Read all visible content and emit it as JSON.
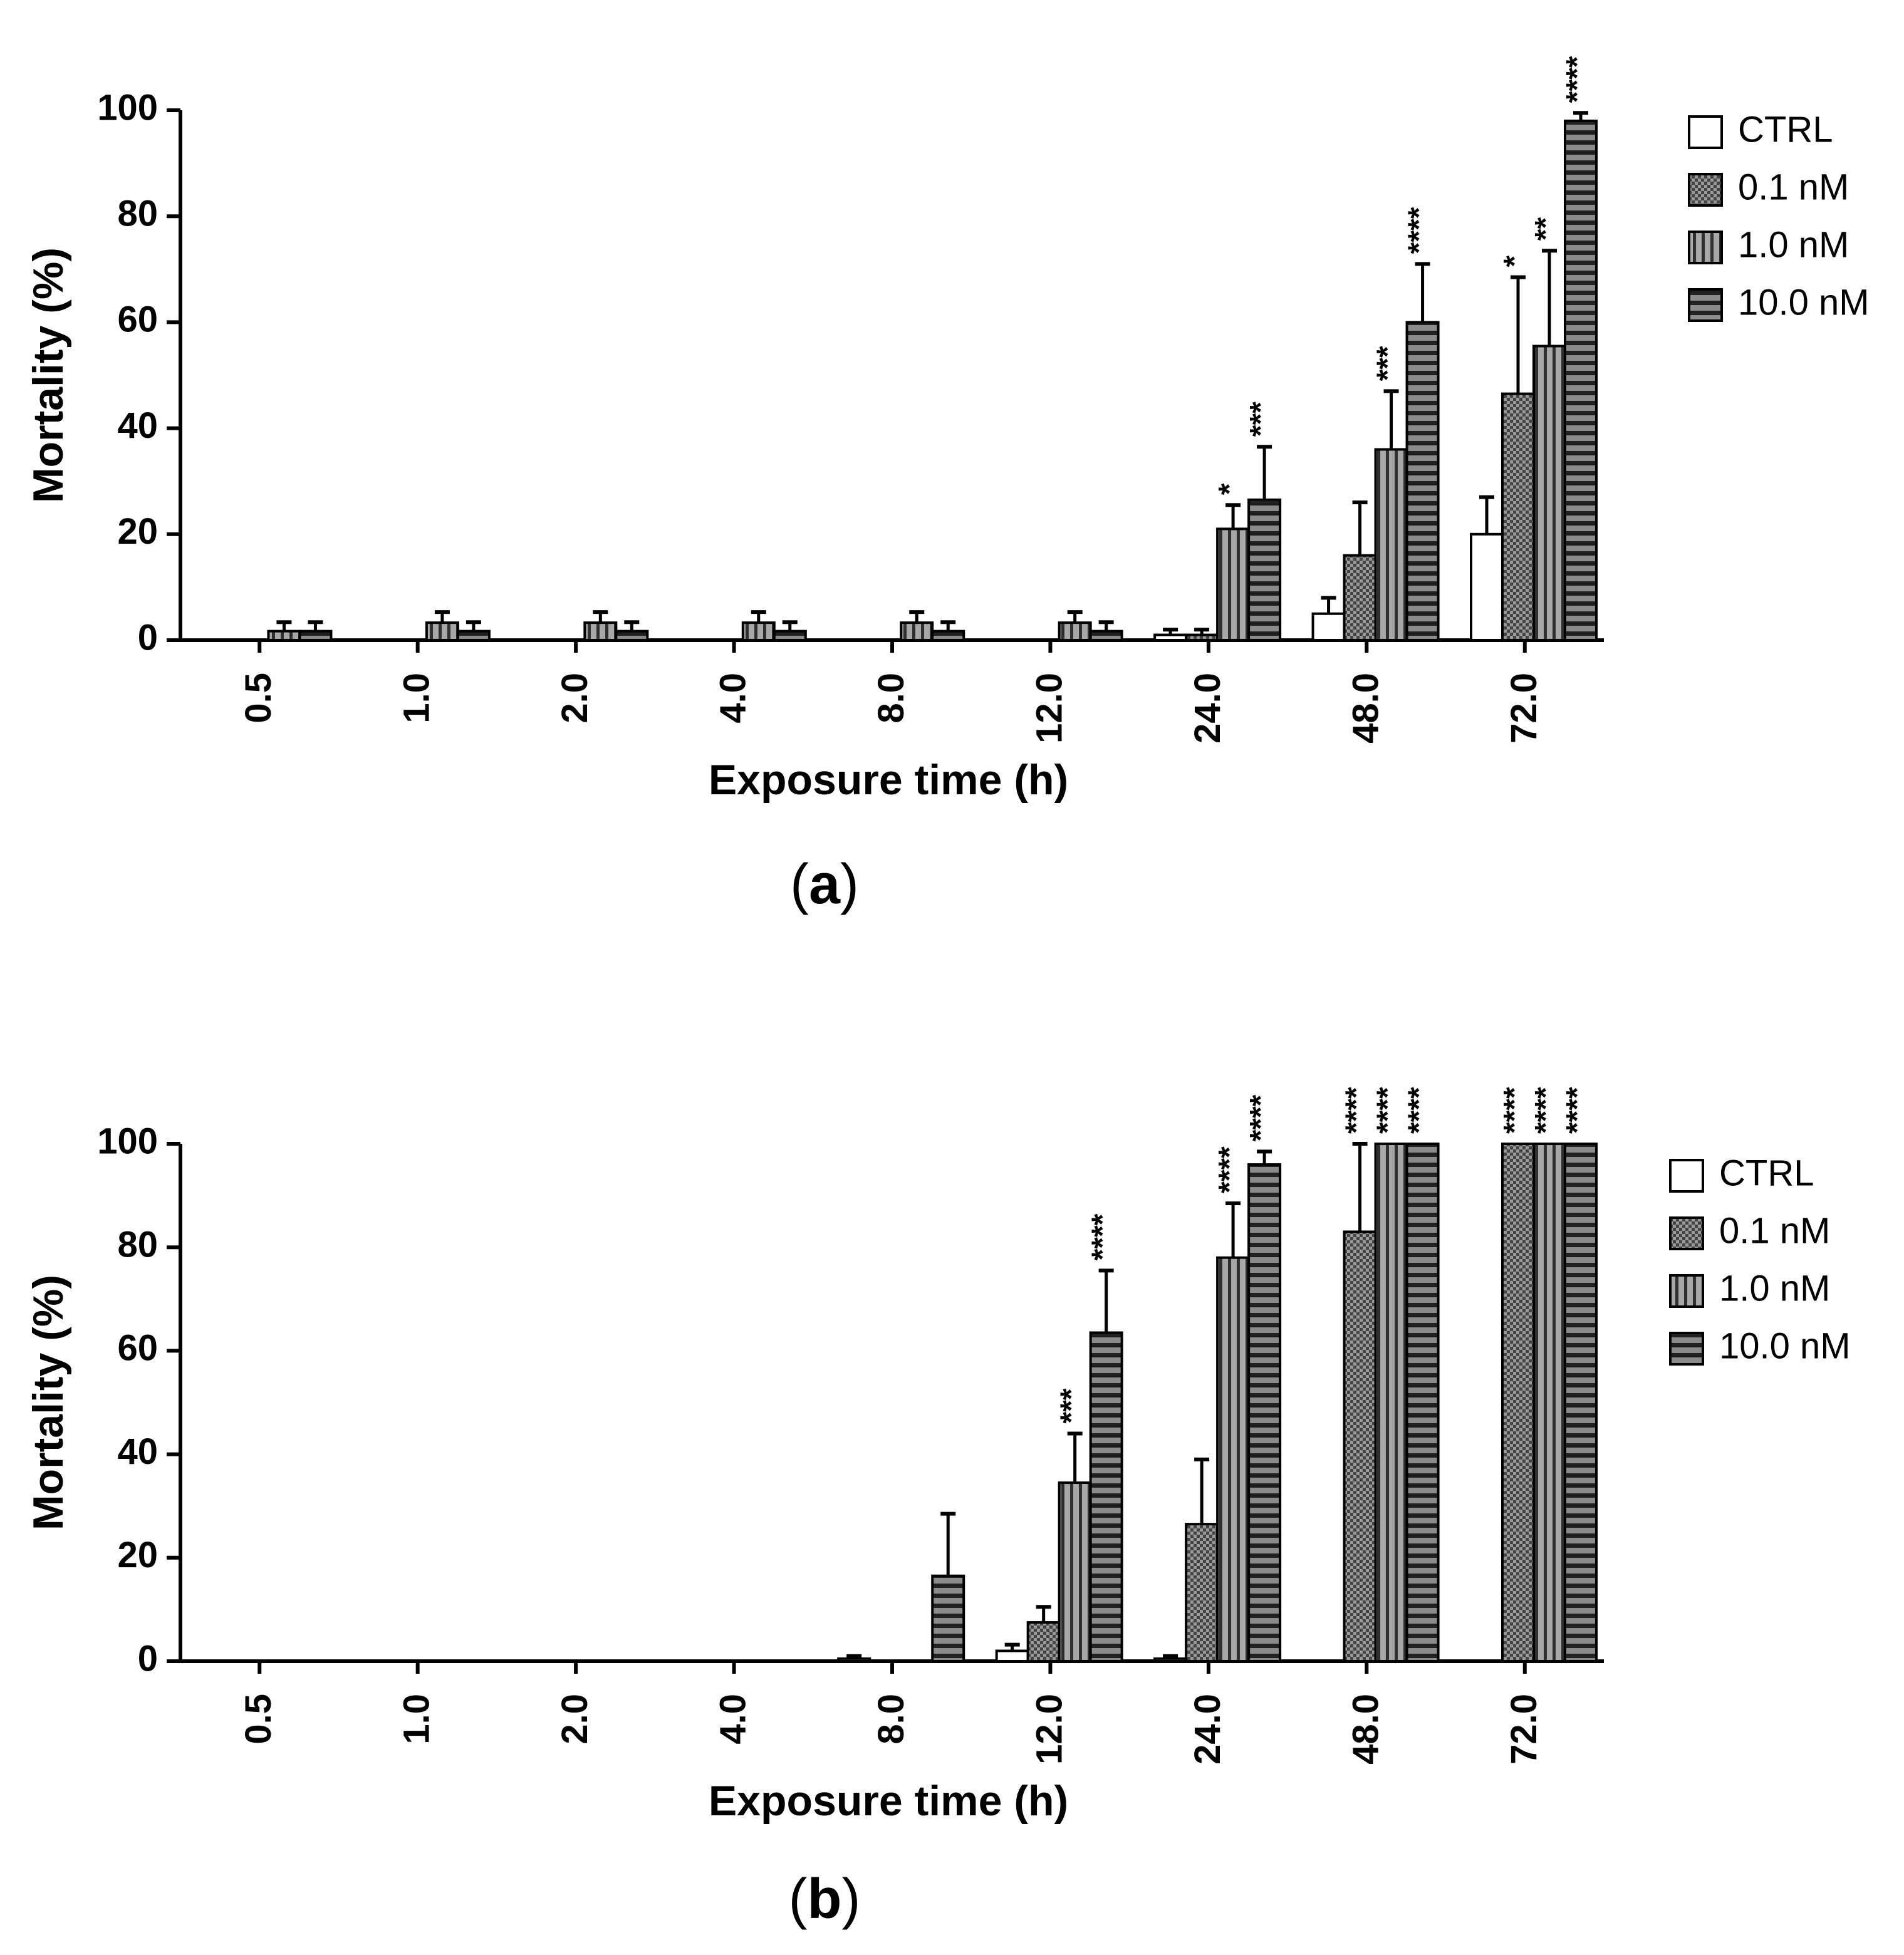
{
  "chart_data": [
    {
      "type": "bar",
      "panel": "a",
      "xlabel": "Exposure time (h)",
      "ylabel": "Mortality (%)",
      "ylim": [
        0,
        100
      ],
      "yticks": [
        "0",
        "20",
        "40",
        "60",
        "80",
        "100"
      ],
      "categories": [
        "0.5",
        "1.0",
        "2.0",
        "4.0",
        "8.0",
        "12.0",
        "24.0",
        "48.0",
        "72.0"
      ],
      "series": [
        {
          "name": "CTRL",
          "pattern": "white",
          "values": [
            0,
            0,
            0,
            0,
            0,
            0,
            1,
            5,
            20
          ],
          "errors": [
            0,
            0,
            0,
            0,
            0,
            0,
            1,
            3,
            7
          ],
          "sig": [
            "",
            "",
            "",
            "",
            "",
            "",
            "",
            "",
            ""
          ]
        },
        {
          "name": "0.1 nM",
          "pattern": "checker",
          "values": [
            0,
            0,
            0,
            0,
            0,
            0,
            1,
            16,
            46.5
          ],
          "errors": [
            0,
            0,
            0,
            0,
            0,
            0,
            1,
            10,
            22
          ],
          "sig": [
            "",
            "",
            "",
            "",
            "",
            "",
            "",
            "",
            "*"
          ]
        },
        {
          "name": "1.0 nM",
          "pattern": "vertical",
          "values": [
            1.7,
            3.3,
            3.3,
            3.3,
            3.3,
            3.3,
            21,
            36,
            55.5
          ],
          "errors": [
            1.7,
            2,
            2,
            2,
            2,
            2,
            4.5,
            11,
            18
          ],
          "sig": [
            "",
            "",
            "",
            "",
            "",
            "",
            "*",
            "***",
            "**"
          ]
        },
        {
          "name": "10.0 nM",
          "pattern": "horizontal",
          "values": [
            1.7,
            1.7,
            1.7,
            1.7,
            1.7,
            1.7,
            26.5,
            60,
            98
          ],
          "errors": [
            1.7,
            1.7,
            1.7,
            1.7,
            1.7,
            1.7,
            10,
            11,
            1.5
          ],
          "sig": [
            "",
            "",
            "",
            "",
            "",
            "",
            "***",
            "****",
            "****"
          ]
        }
      ],
      "legend": "right"
    },
    {
      "type": "bar",
      "panel": "b",
      "xlabel": "Exposure time (h)",
      "ylabel": "Mortality (%)",
      "ylim": [
        0,
        100
      ],
      "yticks": [
        "0",
        "20",
        "40",
        "60",
        "80",
        "100"
      ],
      "categories": [
        "0.5",
        "1.0",
        "2.0",
        "4.0",
        "8.0",
        "12.0",
        "24.0",
        "48.0",
        "72.0"
      ],
      "series": [
        {
          "name": "CTRL",
          "pattern": "white",
          "values": [
            0,
            0,
            0,
            0,
            0.5,
            2,
            0.5,
            0,
            0
          ],
          "errors": [
            0,
            0,
            0,
            0,
            0.5,
            1.2,
            0.5,
            0,
            0
          ],
          "sig": [
            "",
            "",
            "",
            "",
            "",
            "",
            "",
            "",
            ""
          ]
        },
        {
          "name": "0.1 nM",
          "pattern": "checker",
          "values": [
            0,
            0,
            0,
            0,
            0,
            7.5,
            26.5,
            83,
            100
          ],
          "errors": [
            0,
            0,
            0,
            0,
            0,
            3,
            12.5,
            17,
            0
          ],
          "sig": [
            "",
            "",
            "",
            "",
            "",
            "",
            "",
            "****",
            "****"
          ]
        },
        {
          "name": "1.0 nM",
          "pattern": "vertical",
          "values": [
            0,
            0,
            0,
            0,
            0,
            34.5,
            78,
            100,
            100
          ],
          "errors": [
            0,
            0,
            0,
            0,
            0,
            9.5,
            10.5,
            0,
            0
          ],
          "sig": [
            "",
            "",
            "",
            "",
            "",
            "***",
            "****",
            "****",
            "****"
          ]
        },
        {
          "name": "10.0 nM",
          "pattern": "horizontal",
          "values": [
            0,
            0,
            0,
            0,
            16.5,
            63.5,
            96,
            100,
            100
          ],
          "errors": [
            0,
            0,
            0,
            0,
            12,
            12,
            2.5,
            0,
            0
          ],
          "sig": [
            "",
            "",
            "",
            "",
            "",
            "****",
            "****",
            "****",
            "****"
          ]
        }
      ],
      "legend": "right"
    }
  ],
  "captions": [
    "a",
    "b"
  ]
}
